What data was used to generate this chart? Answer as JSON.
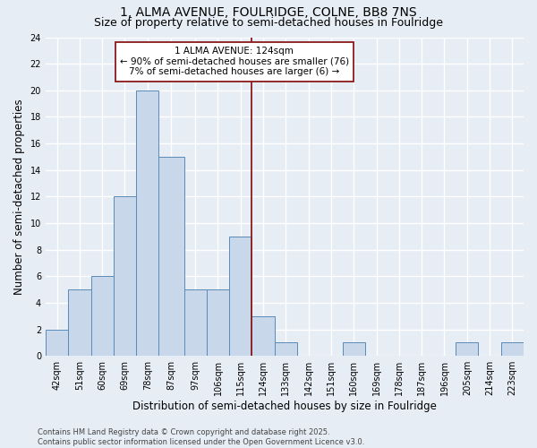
{
  "title_line1": "1, ALMA AVENUE, FOULRIDGE, COLNE, BB8 7NS",
  "title_line2": "Size of property relative to semi-detached houses in Foulridge",
  "xlabel": "Distribution of semi-detached houses by size in Foulridge",
  "ylabel": "Number of semi-detached properties",
  "bin_edges": [
    42,
    51,
    60,
    69,
    78,
    87,
    97,
    106,
    115,
    124,
    133,
    142,
    151,
    160,
    169,
    178,
    187,
    196,
    205,
    214,
    223,
    232
  ],
  "bin_labels": [
    "42sqm",
    "51sqm",
    "60sqm",
    "69sqm",
    "78sqm",
    "87sqm",
    "97sqm",
    "106sqm",
    "115sqm",
    "124sqm",
    "133sqm",
    "142sqm",
    "151sqm",
    "160sqm",
    "169sqm",
    "178sqm",
    "187sqm",
    "196sqm",
    "205sqm",
    "214sqm",
    "223sqm"
  ],
  "counts": [
    2,
    5,
    6,
    12,
    20,
    15,
    5,
    5,
    9,
    3,
    1,
    0,
    0,
    1,
    0,
    0,
    0,
    0,
    1,
    0,
    1
  ],
  "bar_color": "#c8d8ea",
  "bar_edge_color": "#5a8ab8",
  "background_color": "#e6edf5",
  "grid_color": "#ffffff",
  "property_line_x": 124,
  "property_line_color": "#8b1a1a",
  "annotation_line1": "1 ALMA AVENUE: 124sqm",
  "annotation_line2": "← 90% of semi-detached houses are smaller (76)",
  "annotation_line3": "7% of semi-detached houses are larger (6) →",
  "annotation_box_color": "#ffffff",
  "annotation_box_edge": "#8b1a1a",
  "ylim": [
    0,
    24
  ],
  "yticks": [
    0,
    2,
    4,
    6,
    8,
    10,
    12,
    14,
    16,
    18,
    20,
    22,
    24
  ],
  "footnote": "Contains HM Land Registry data © Crown copyright and database right 2025.\nContains public sector information licensed under the Open Government Licence v3.0.",
  "title_fontsize": 10,
  "subtitle_fontsize": 9,
  "axis_label_fontsize": 8.5,
  "tick_fontsize": 7,
  "annotation_fontsize": 7.5,
  "footnote_fontsize": 6
}
